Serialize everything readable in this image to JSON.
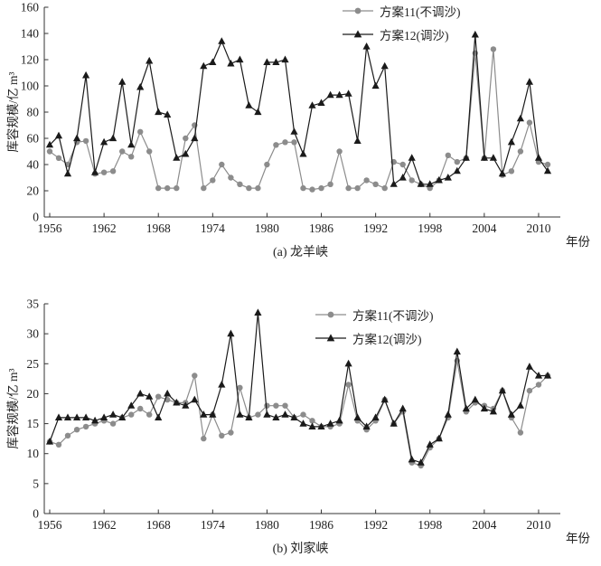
{
  "chart_data": [
    {
      "type": "line",
      "caption": "(a) 龙羊峡",
      "ylabel": "库容规模/亿 m³",
      "xlabel": "年份",
      "ylim": [
        0,
        160
      ],
      "yticks": [
        0,
        20,
        40,
        60,
        80,
        100,
        120,
        140,
        160
      ],
      "xticks": [
        1956,
        1962,
        1968,
        1974,
        1980,
        1986,
        1992,
        1998,
        2004,
        2010
      ],
      "legend_position": "top-right-inside",
      "grid": false,
      "years": [
        1956,
        1957,
        1958,
        1959,
        1960,
        1961,
        1962,
        1963,
        1964,
        1965,
        1966,
        1967,
        1968,
        1969,
        1970,
        1971,
        1972,
        1973,
        1974,
        1975,
        1976,
        1977,
        1978,
        1979,
        1980,
        1981,
        1982,
        1983,
        1984,
        1985,
        1986,
        1987,
        1988,
        1989,
        1990,
        1991,
        1992,
        1993,
        1994,
        1995,
        1996,
        1997,
        1998,
        1999,
        2000,
        2001,
        2002,
        2003,
        2004,
        2005,
        2006,
        2007,
        2008,
        2009,
        2010,
        2011
      ],
      "series": [
        {
          "name": "方案11(不调沙)",
          "marker": "circle",
          "color": "#8c8c8c",
          "values": [
            50,
            45,
            40,
            57,
            58,
            33,
            34,
            35,
            50,
            46,
            65,
            50,
            22,
            22,
            22,
            60,
            70,
            22,
            28,
            40,
            30,
            25,
            22,
            22,
            40,
            55,
            57,
            57,
            22,
            21,
            22,
            25,
            50,
            22,
            22,
            28,
            25,
            22,
            42,
            40,
            28,
            25,
            22,
            28,
            47,
            42,
            45,
            125,
            45,
            128,
            32,
            35,
            50,
            72,
            42,
            40
          ]
        },
        {
          "name": "方案12(调沙)",
          "marker": "triangle",
          "color": "#1a1a1a",
          "values": [
            55,
            62,
            33,
            60,
            108,
            34,
            57,
            60,
            103,
            55,
            99,
            119,
            80,
            78,
            45,
            48,
            60,
            115,
            118,
            134,
            117,
            120,
            85,
            80,
            118,
            118,
            120,
            65,
            48,
            85,
            87,
            93,
            93,
            94,
            58,
            130,
            100,
            115,
            25,
            30,
            45,
            25,
            25,
            28,
            30,
            35,
            45,
            139,
            45,
            45,
            33,
            57,
            75,
            103,
            45,
            35
          ]
        }
      ]
    },
    {
      "type": "line",
      "caption": "(b) 刘家峡",
      "ylabel": "库容规模/亿 m³",
      "xlabel": "年份",
      "ylim": [
        0,
        35
      ],
      "yticks": [
        0,
        5,
        10,
        15,
        20,
        25,
        30,
        35
      ],
      "xticks": [
        1956,
        1962,
        1968,
        1974,
        1980,
        1986,
        1992,
        1998,
        2004,
        2010
      ],
      "legend_position": "top-right-inside",
      "grid": false,
      "years": [
        1956,
        1957,
        1958,
        1959,
        1960,
        1961,
        1962,
        1963,
        1964,
        1965,
        1966,
        1967,
        1968,
        1969,
        1970,
        1971,
        1972,
        1973,
        1974,
        1975,
        1976,
        1977,
        1978,
        1979,
        1980,
        1981,
        1982,
        1983,
        1984,
        1985,
        1986,
        1987,
        1988,
        1989,
        1990,
        1991,
        1992,
        1993,
        1994,
        1995,
        1996,
        1997,
        1998,
        1999,
        2000,
        2001,
        2002,
        2003,
        2004,
        2005,
        2006,
        2007,
        2008,
        2009,
        2010,
        2011
      ],
      "series": [
        {
          "name": "方案11(不调沙)",
          "marker": "circle",
          "color": "#8c8c8c",
          "values": [
            12,
            11.5,
            13,
            14,
            14.5,
            15,
            15.5,
            15,
            16,
            16.5,
            17.5,
            16.5,
            19.5,
            19,
            18.5,
            18.5,
            23,
            12.5,
            16.5,
            13,
            13.5,
            21,
            16,
            16.5,
            18,
            18,
            18,
            16,
            16.5,
            15.5,
            14.5,
            14.5,
            15,
            21.5,
            15.5,
            14,
            15.5,
            19,
            15,
            17,
            8.5,
            8,
            11,
            12.5,
            16,
            25.5,
            17,
            18.5,
            18,
            17.5,
            20.5,
            16,
            13.5,
            20.5,
            21.5,
            23
          ]
        },
        {
          "name": "方案12(调沙)",
          "marker": "triangle",
          "color": "#1a1a1a",
          "values": [
            12,
            16,
            16,
            16,
            16,
            15.5,
            16,
            16.5,
            16,
            18,
            20,
            19.5,
            16,
            20,
            18.5,
            18,
            19,
            16.5,
            16.5,
            21.5,
            30,
            16.5,
            16,
            33.5,
            16.5,
            16,
            16.5,
            16,
            15,
            14.5,
            14.5,
            15,
            15.5,
            25,
            16,
            14.5,
            16,
            19,
            15,
            17.5,
            9,
            8.5,
            11.5,
            12.5,
            16.5,
            27,
            17.5,
            19,
            17.5,
            17,
            20.5,
            16.5,
            18,
            24.5,
            23,
            23
          ]
        }
      ]
    }
  ]
}
